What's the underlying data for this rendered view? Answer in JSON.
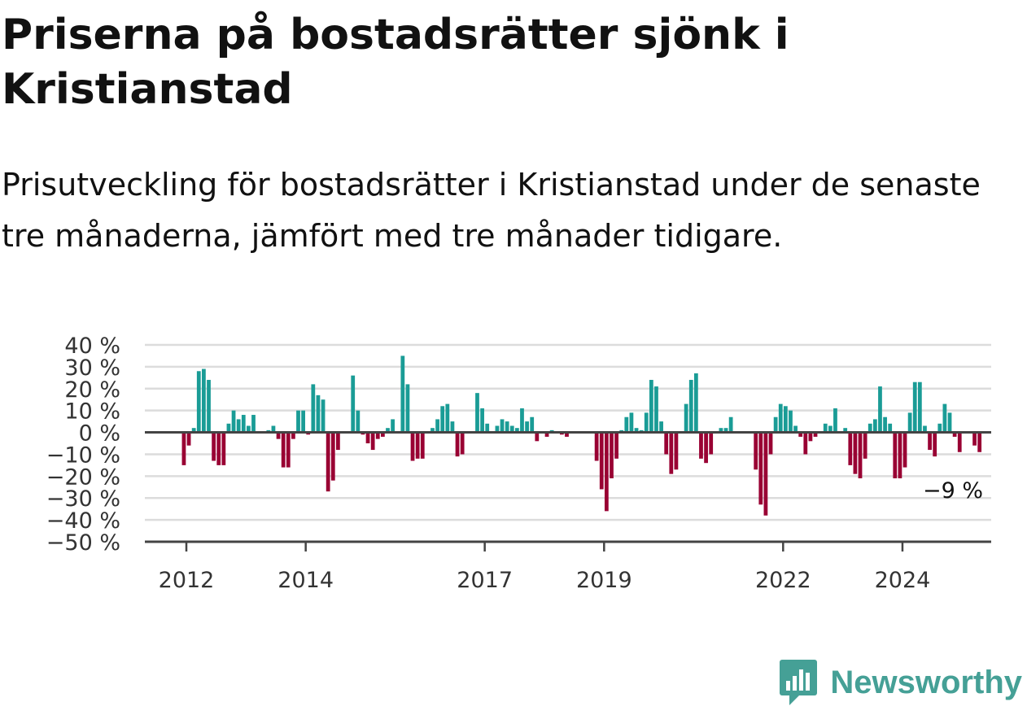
{
  "header": {
    "title": "Priserna på bostadsrätter sjönk i Kristianstad",
    "subtitle": "Prisutveckling för bostadsrätter i Kristianstad under de senaste tre månaderna, jämfört med tre månader tidigare."
  },
  "logo": {
    "text": "Newsworthy",
    "icon": "newsworthy-chart-bubble-icon",
    "color": "#45a096"
  },
  "chart_data": {
    "type": "bar",
    "title": "",
    "xlabel": "",
    "ylabel": "",
    "ylim": [
      -50,
      40
    ],
    "y_ticks": [
      "40 %",
      "30 %",
      "20 %",
      "10 %",
      "0 %",
      "−10 %",
      "−20 %",
      "−30 %",
      "−40 %",
      "−50 %"
    ],
    "x_ticks": [
      "2012",
      "2014",
      "2017",
      "2019",
      "2022",
      "2024"
    ],
    "grid": true,
    "colors": {
      "positive": "#1a9c96",
      "negative": "#990033",
      "zero_line": "#444444",
      "grid": "#dcdcdc"
    },
    "end_label": "−9 %",
    "series": [
      {
        "start": "2011-10",
        "values": [
          0,
          0,
          -15,
          -6,
          2,
          28,
          29,
          24,
          -13,
          -15,
          -15,
          4,
          10,
          6,
          8,
          3,
          8,
          0,
          0,
          1,
          3,
          -3,
          -16,
          -16,
          -3,
          10,
          10,
          -1,
          22,
          17,
          15,
          -27,
          -22,
          -8,
          0,
          0,
          26,
          10,
          -1,
          -5,
          -8,
          -3,
          -2,
          2,
          6,
          0,
          35,
          22,
          -13,
          -12,
          -12,
          0,
          2,
          6,
          12,
          13,
          5,
          -11,
          -10,
          0,
          0,
          18,
          11,
          4,
          0,
          3,
          6,
          5,
          3,
          2,
          11,
          5,
          7,
          -4,
          0,
          -2,
          1,
          0,
          -1,
          -2,
          0,
          0,
          0,
          0,
          0,
          -13,
          -26,
          -36,
          -21,
          -12,
          1,
          7,
          9,
          2,
          1,
          9,
          24,
          21,
          5,
          -10,
          -19,
          -17,
          0,
          13,
          24,
          27,
          -12,
          -14,
          -10,
          0,
          2,
          2,
          7,
          0,
          0,
          0,
          0,
          -17,
          -33,
          -38,
          -10,
          7,
          13,
          12,
          10,
          3,
          -2,
          -10,
          -4,
          -2,
          0,
          4,
          3,
          11,
          0,
          2,
          -15,
          -19,
          -21,
          -12,
          4,
          6,
          21,
          7,
          4,
          -21,
          -21,
          -16,
          9,
          23,
          23,
          3,
          -8,
          -11,
          4,
          13,
          9,
          -2,
          -9,
          0,
          0,
          -6,
          -9
        ]
      }
    ]
  }
}
